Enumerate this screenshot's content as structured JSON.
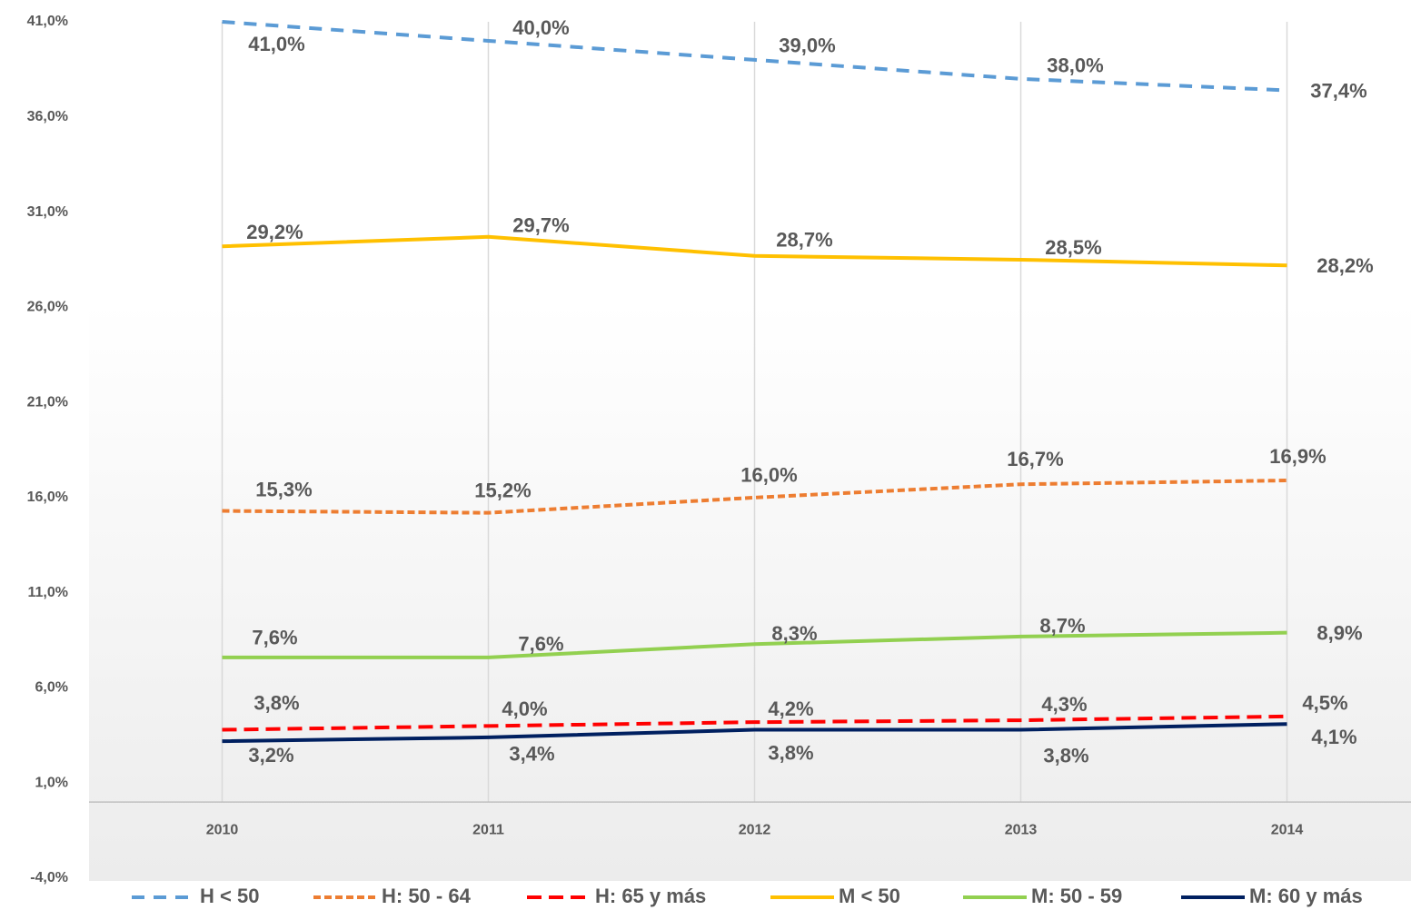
{
  "chart_data": {
    "type": "line",
    "categories": [
      "2010",
      "2011",
      "2012",
      "2013",
      "2014"
    ],
    "series": [
      {
        "name": "H < 50",
        "color": "#5b9bd5",
        "dash": "14 10",
        "values": [
          41.0,
          40.0,
          39.0,
          38.0,
          37.4
        ],
        "value_labels": [
          "41,0%",
          "40,0%",
          "39,0%",
          "38,0%",
          "37,4%"
        ]
      },
      {
        "name": "H: 50 - 64",
        "color": "#ed7d31",
        "dash": "8 4",
        "values": [
          15.3,
          15.2,
          16.0,
          16.7,
          16.9
        ],
        "value_labels": [
          "15,3%",
          "15,2%",
          "16,0%",
          "16,7%",
          "16,9%"
        ]
      },
      {
        "name": "H: 65 y más",
        "color": "#ff0000",
        "dash": "16 8",
        "values": [
          3.8,
          4.0,
          4.2,
          4.3,
          4.5
        ],
        "value_labels": [
          "3,8%",
          "4,0%",
          "4,2%",
          "4,3%",
          "4,5%"
        ]
      },
      {
        "name": "M <  50",
        "color": "#ffc000",
        "values": [
          29.2,
          29.7,
          28.7,
          28.5,
          28.2
        ],
        "value_labels": [
          "29,2%",
          "29,7%",
          "28,7%",
          "28,5%",
          "28,2%"
        ]
      },
      {
        "name": "M: 50 - 59",
        "color": "#92d050",
        "values": [
          7.6,
          7.6,
          8.3,
          8.7,
          8.9
        ],
        "value_labels": [
          "7,6%",
          "7,6%",
          "8,3%",
          "8,7%",
          "8,9%"
        ]
      },
      {
        "name": "M: 60 y más",
        "color": "#002060",
        "values": [
          3.2,
          3.4,
          3.8,
          3.8,
          4.1
        ],
        "value_labels": [
          "3,2%",
          "3,4%",
          "3,8%",
          "3,8%",
          "4,1%"
        ]
      }
    ],
    "ylim": [
      -4,
      41
    ],
    "yticks": [
      {
        "value": -4,
        "label": "-4,0%"
      },
      {
        "value": 1,
        "label": "1,0%"
      },
      {
        "value": 6,
        "label": "6,0%"
      },
      {
        "value": 11,
        "label": "11,0%"
      },
      {
        "value": 16,
        "label": "16,0%"
      },
      {
        "value": 21,
        "label": "21,0%"
      },
      {
        "value": 26,
        "label": "26,0%"
      },
      {
        "value": 31,
        "label": "31,0%"
      },
      {
        "value": 36,
        "label": "36,0%"
      },
      {
        "value": 41,
        "label": "41,0%"
      }
    ],
    "grid": "x",
    "legend": "bottom"
  }
}
